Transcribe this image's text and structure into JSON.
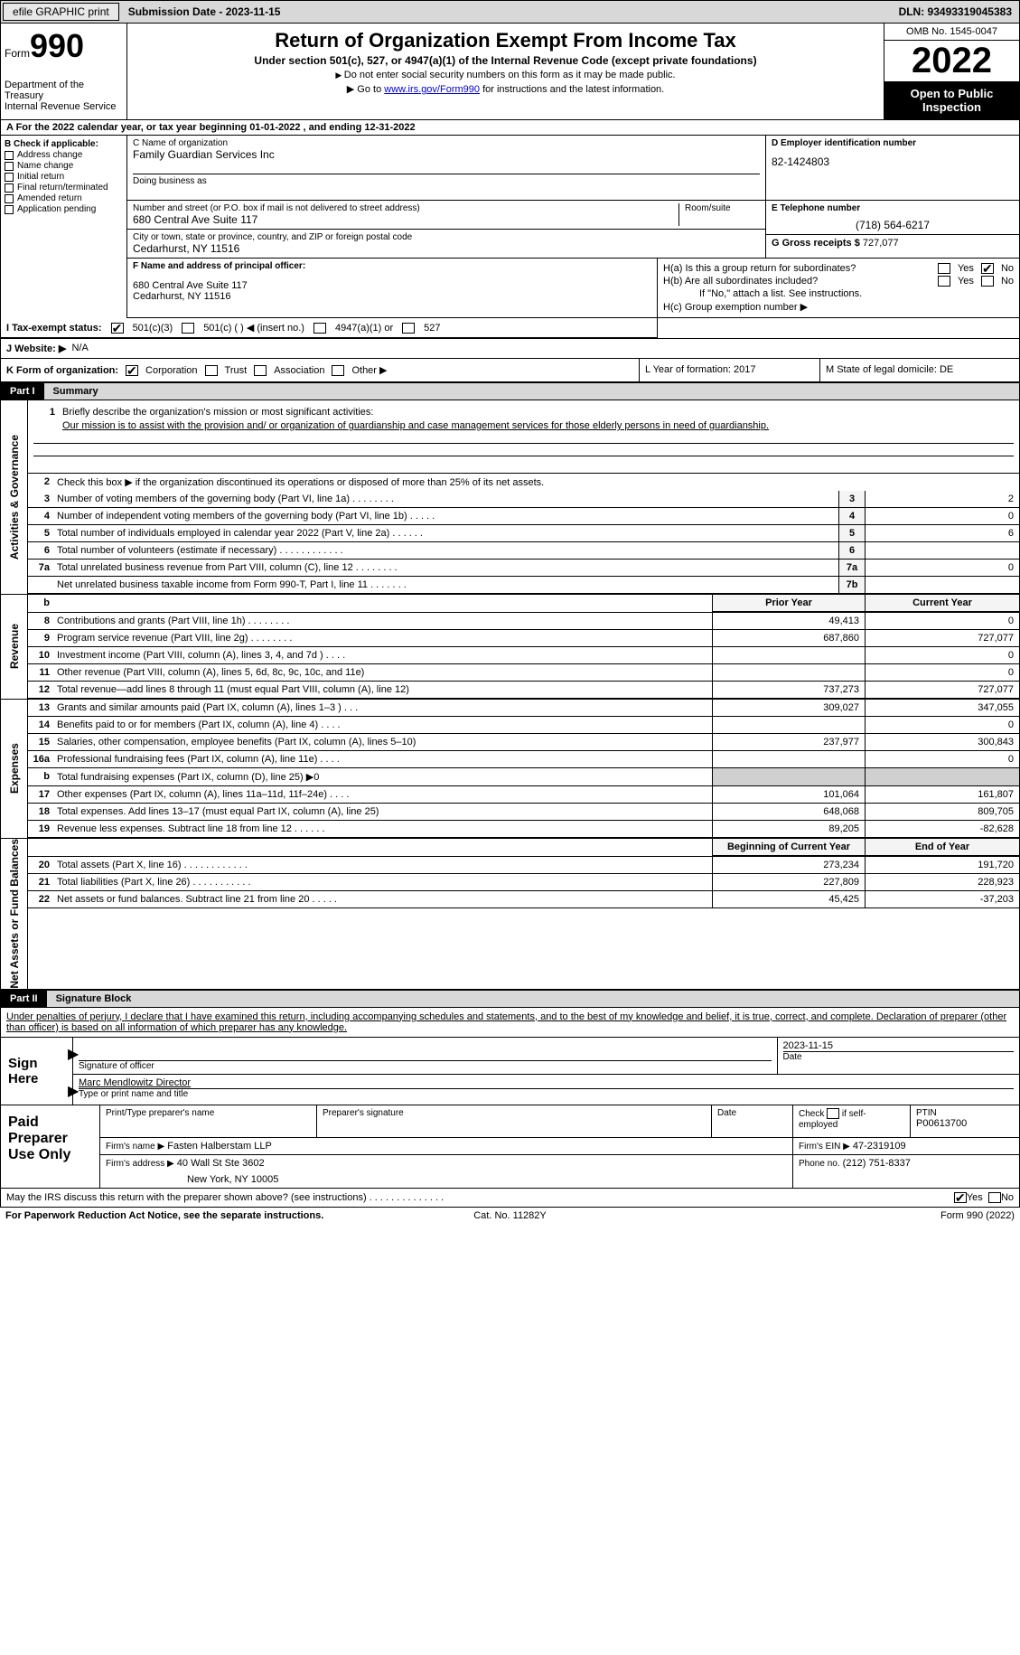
{
  "topbar": {
    "efile": "efile GRAPHIC print",
    "sub_date_label": "Submission Date - 2023-11-15",
    "dln": "DLN: 93493319045383"
  },
  "header": {
    "form_label": "Form",
    "form_num": "990",
    "dept": "Department of the Treasury\nInternal Revenue Service",
    "title": "Return of Organization Exempt From Income Tax",
    "subtitle": "Under section 501(c), 527, or 4947(a)(1) of the Internal Revenue Code (except private foundations)",
    "note1": "Do not enter social security numbers on this form as it may be made public.",
    "note2_pre": "Go to ",
    "note2_link": "www.irs.gov/Form990",
    "note2_post": " for instructions and the latest information.",
    "omb": "OMB No. 1545-0047",
    "year": "2022",
    "open": "Open to Public Inspection"
  },
  "rowA": "A For the 2022 calendar year, or tax year beginning 01-01-2022    , and ending 12-31-2022",
  "colB": {
    "hdr": "B Check if applicable:",
    "opts": [
      "Address change",
      "Name change",
      "Initial return",
      "Final return/terminated",
      "Amended return",
      "Application pending"
    ]
  },
  "C": {
    "name_lbl": "C Name of organization",
    "name": "Family Guardian Services Inc",
    "dba_lbl": "Doing business as",
    "addr_lbl": "Number and street (or P.O. box if mail is not delivered to street address)",
    "addr": "680 Central Ave Suite 117",
    "room_lbl": "Room/suite",
    "city_lbl": "City or town, state or province, country, and ZIP or foreign postal code",
    "city": "Cedarhurst, NY  11516"
  },
  "D": {
    "lbl": "D Employer identification number",
    "val": "82-1424803"
  },
  "E": {
    "lbl": "E Telephone number",
    "val": "(718) 564-6217"
  },
  "G": {
    "lbl": "G Gross receipts $",
    "val": "727,077"
  },
  "F": {
    "lbl": "F Name and address of principal officer:",
    "addr1": "680 Central Ave Suite 117",
    "addr2": "Cedarhurst, NY  11516"
  },
  "H": {
    "a": "H(a)  Is this a group return for subordinates?",
    "b": "H(b)  Are all subordinates included?",
    "bnote": "If \"No,\" attach a list. See instructions.",
    "c": "H(c)  Group exemption number ▶",
    "yes": "Yes",
    "no": "No"
  },
  "I": {
    "lbl": "I   Tax-exempt status:",
    "o1": "501(c)(3)",
    "o2": "501(c) (  ) ◀ (insert no.)",
    "o3": "4947(a)(1) or",
    "o4": "527"
  },
  "J": {
    "lbl": "J  Website: ▶",
    "val": "N/A"
  },
  "K": {
    "lbl": "K Form of organization:",
    "opts": [
      "Corporation",
      "Trust",
      "Association",
      "Other ▶"
    ],
    "L": "L Year of formation: 2017",
    "M": "M State of legal domicile: DE"
  },
  "part1": {
    "num": "Part I",
    "ttl": "Summary"
  },
  "mission": {
    "q": "Briefly describe the organization's mission or most significant activities:",
    "txt": "Our mission is to assist with the provision and/ or organization of guardianship and case management services for those elderly persons in need of guardianship."
  },
  "line2": "Check this box ▶      if the organization discontinued its operations or disposed of more than 25% of its net assets.",
  "lines_gov": [
    {
      "n": "3",
      "t": "Number of voting members of the governing body (Part VI, line 1a)   .    .    .    .    .    .    .    .",
      "b": "3",
      "v": "2"
    },
    {
      "n": "4",
      "t": "Number of independent voting members of the governing body (Part VI, line 1b)    .    .    .    .    .",
      "b": "4",
      "v": "0"
    },
    {
      "n": "5",
      "t": "Total number of individuals employed in calendar year 2022 (Part V, line 2a)    .    .    .    .    .    .",
      "b": "5",
      "v": "6"
    },
    {
      "n": "6",
      "t": "Total number of volunteers (estimate if necessary)    .    .    .    .    .    .    .    .    .    .    .    .",
      "b": "6",
      "v": ""
    },
    {
      "n": "7a",
      "t": "Total unrelated business revenue from Part VIII, column (C), line 12    .    .    .    .    .    .    .    .",
      "b": "7a",
      "v": "0"
    },
    {
      "n": "",
      "t": "Net unrelated business taxable income from Form 990-T, Part I, line 11    .    .    .    .    .    .    .",
      "b": "7b",
      "v": ""
    }
  ],
  "hdr_prior": "Prior Year",
  "hdr_curr": "Current Year",
  "lines_rev": [
    {
      "n": "8",
      "t": "Contributions and grants (Part VIII, line 1h)    .    .    .    .    .    .    .    .",
      "p": "49,413",
      "c": "0"
    },
    {
      "n": "9",
      "t": "Program service revenue (Part VIII, line 2g)    .    .    .    .    .    .    .    .",
      "p": "687,860",
      "c": "727,077"
    },
    {
      "n": "10",
      "t": "Investment income (Part VIII, column (A), lines 3, 4, and 7d )    .    .    .    .",
      "p": "",
      "c": "0"
    },
    {
      "n": "11",
      "t": "Other revenue (Part VIII, column (A), lines 5, 6d, 8c, 9c, 10c, and 11e)",
      "p": "",
      "c": "0"
    },
    {
      "n": "12",
      "t": "Total revenue—add lines 8 through 11 (must equal Part VIII, column (A), line 12)",
      "p": "737,273",
      "c": "727,077"
    }
  ],
  "lines_exp": [
    {
      "n": "13",
      "t": "Grants and similar amounts paid (Part IX, column (A), lines 1–3 )    .    .    .",
      "p": "309,027",
      "c": "347,055"
    },
    {
      "n": "14",
      "t": "Benefits paid to or for members (Part IX, column (A), line 4)    .    .    .    .",
      "p": "",
      "c": "0"
    },
    {
      "n": "15",
      "t": "Salaries, other compensation, employee benefits (Part IX, column (A), lines 5–10)",
      "p": "237,977",
      "c": "300,843"
    },
    {
      "n": "16a",
      "t": "Professional fundraising fees (Part IX, column (A), line 11e)    .    .    .    .",
      "p": "",
      "c": "0"
    },
    {
      "n": "b",
      "t": "Total fundraising expenses (Part IX, column (D), line 25) ▶0",
      "p": "shade",
      "c": "shade"
    },
    {
      "n": "17",
      "t": "Other expenses (Part IX, column (A), lines 11a–11d, 11f–24e)    .    .    .    .",
      "p": "101,064",
      "c": "161,807"
    },
    {
      "n": "18",
      "t": "Total expenses. Add lines 13–17 (must equal Part IX, column (A), line 25)",
      "p": "648,068",
      "c": "809,705"
    },
    {
      "n": "19",
      "t": "Revenue less expenses. Subtract line 18 from line 12    .    .    .    .    .    .",
      "p": "89,205",
      "c": "-82,628"
    }
  ],
  "hdr_boy": "Beginning of Current Year",
  "hdr_eoy": "End of Year",
  "lines_net": [
    {
      "n": "20",
      "t": "Total assets (Part X, line 16)    .    .    .    .    .    .    .    .    .    .    .    .",
      "p": "273,234",
      "c": "191,720"
    },
    {
      "n": "21",
      "t": "Total liabilities (Part X, line 26)    .    .    .    .    .    .    .    .    .    .    .",
      "p": "227,809",
      "c": "228,923"
    },
    {
      "n": "22",
      "t": "Net assets or fund balances. Subtract line 21 from line 20    .    .    .    .    .",
      "p": "45,425",
      "c": "-37,203"
    }
  ],
  "part2": {
    "num": "Part II",
    "ttl": "Signature Block"
  },
  "penalty": "Under penalties of perjury, I declare that I have examined this return, including accompanying schedules and statements, and to the best of my knowledge and belief, it is true, correct, and complete. Declaration of preparer (other than officer) is based on all information of which preparer has any knowledge.",
  "sign": {
    "here": "Sign Here",
    "sig_lbl": "Signature of officer",
    "date": "2023-11-15",
    "date_lbl": "Date",
    "name": "Marc Mendlowitz  Director",
    "name_lbl": "Type or print name and title"
  },
  "paid": {
    "ttl": "Paid Preparer Use Only",
    "prep_name_lbl": "Print/Type preparer's name",
    "prep_sig_lbl": "Preparer's signature",
    "date_lbl": "Date",
    "self_lbl": "Check        if self-employed",
    "ptin_lbl": "PTIN",
    "ptin": "P00613700",
    "firm_name_lbl": "Firm's name    ▶",
    "firm_name": "Fasten Halberstam LLP",
    "firm_ein_lbl": "Firm's EIN ▶",
    "firm_ein": "47-2319109",
    "firm_addr_lbl": "Firm's address ▶",
    "firm_addr1": "40 Wall St Ste 3602",
    "firm_addr2": "New York, NY  10005",
    "phone_lbl": "Phone no.",
    "phone": "(212) 751-8337"
  },
  "discuss": "May the IRS discuss this return with the preparer shown above? (see instructions)    .    .    .    .    .    .    .    .    .    .    .    .    .    .",
  "footer": {
    "l": "For Paperwork Reduction Act Notice, see the separate instructions.",
    "m": "Cat. No. 11282Y",
    "r": "Form 990 (2022)"
  },
  "vtabs": {
    "gov": "Activities & Governance",
    "rev": "Revenue",
    "exp": "Expenses",
    "net": "Net Assets or Fund Balances"
  }
}
